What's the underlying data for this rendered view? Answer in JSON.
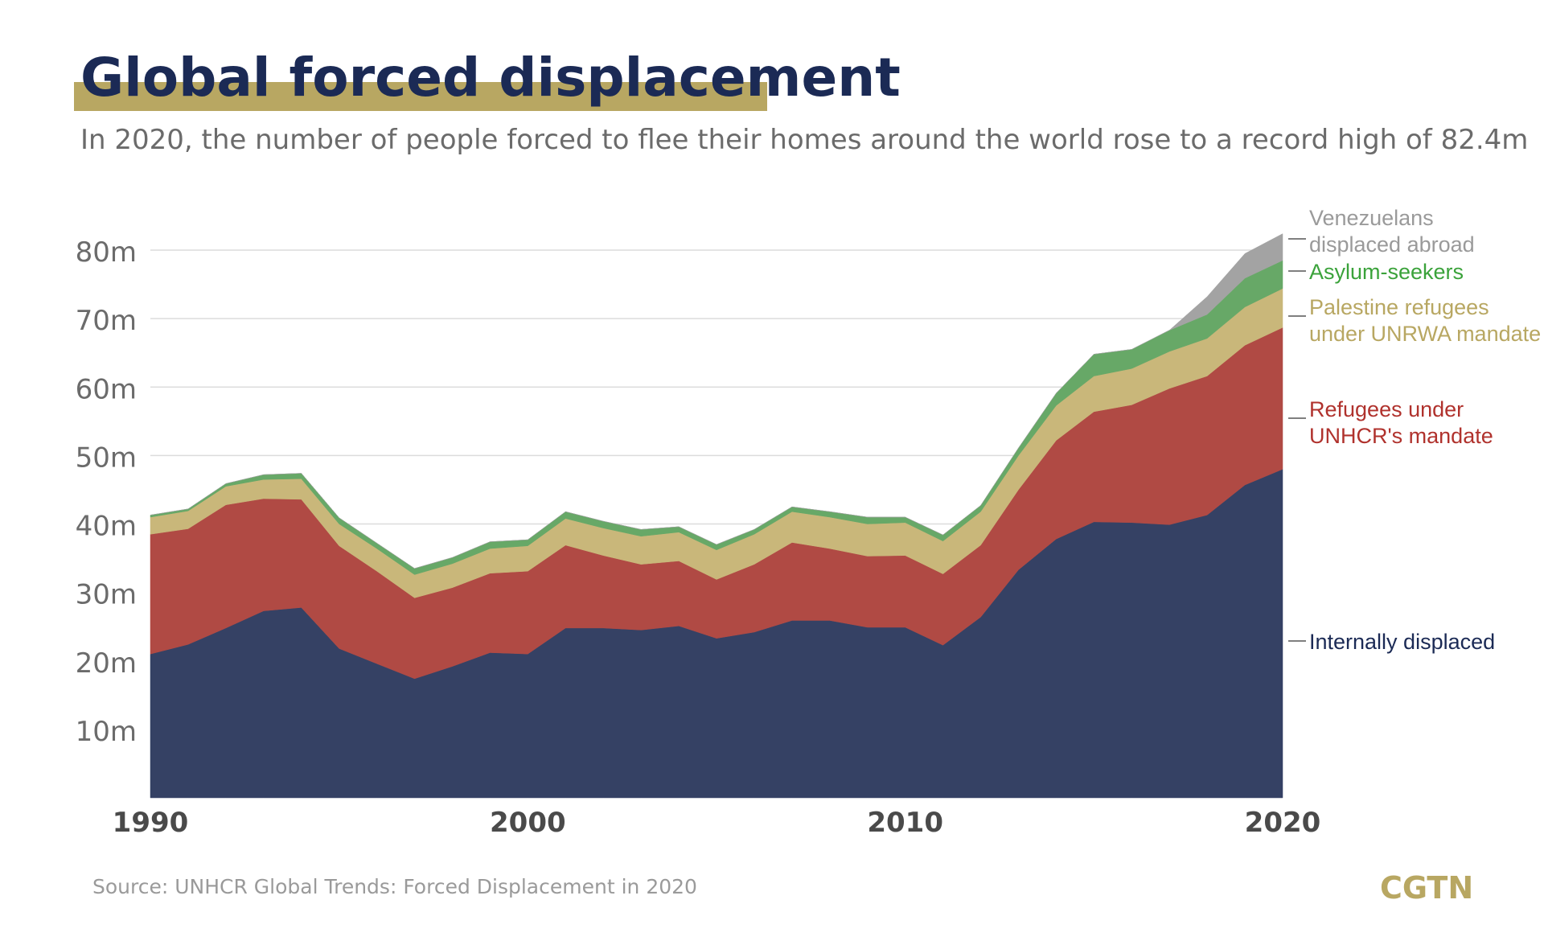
{
  "header": {
    "title": "Global forced displacement",
    "subtitle": "In 2020, the number of people forced to flee their homes around the world rose to a record high of 82.4m"
  },
  "footer": {
    "source": "Source: UNHCR Global Trends: Forced Displacement in 2020",
    "logo": "CGTN"
  },
  "chart_data": {
    "type": "area",
    "stacked": true,
    "title": "",
    "xlabel": "",
    "ylabel": "",
    "xlim": [
      1990,
      2020
    ],
    "ylim": [
      0,
      80
    ],
    "x_ticks": [
      {
        "value": 1990,
        "label": "1990"
      },
      {
        "value": 2000,
        "label": "2000"
      },
      {
        "value": 2010,
        "label": "2010"
      },
      {
        "value": 2020,
        "label": "2020"
      }
    ],
    "y_ticks": [
      {
        "value": 10,
        "label": "10m"
      },
      {
        "value": 20,
        "label": "20m"
      },
      {
        "value": 30,
        "label": "30m"
      },
      {
        "value": 40,
        "label": "40m"
      },
      {
        "value": 50,
        "label": "50m"
      },
      {
        "value": 60,
        "label": "60m"
      },
      {
        "value": 70,
        "label": "70m"
      },
      {
        "value": 80,
        "label": "80m"
      }
    ],
    "grid": true,
    "legend_placement": "right, inline labels",
    "x": [
      1990,
      1991,
      1992,
      1993,
      1994,
      1995,
      1996,
      1997,
      1998,
      1999,
      2000,
      2001,
      2002,
      2003,
      2004,
      2005,
      2006,
      2007,
      2008,
      2009,
      2010,
      2011,
      2012,
      2013,
      2014,
      2015,
      2016,
      2017,
      2018,
      2019,
      2020
    ],
    "series": [
      {
        "name": "Internally displaced",
        "color": "#354164",
        "label_color": "#1b2a55",
        "label_lines": [
          "Internally displaced"
        ],
        "values": [
          21.0,
          22.4,
          24.8,
          27.3,
          27.8,
          21.8,
          19.6,
          17.4,
          19.2,
          21.2,
          21.0,
          24.8,
          24.8,
          24.5,
          25.1,
          23.3,
          24.2,
          25.9,
          25.9,
          24.9,
          24.9,
          22.3,
          26.4,
          33.3,
          37.8,
          40.3,
          40.2,
          39.9,
          41.3,
          45.7,
          48.0
        ]
      },
      {
        "name": "Refugees under UNHCR's mandate",
        "color": "#b04a44",
        "label_color": "#b0322d",
        "label_lines": [
          "Refugees under",
          "UNHCR's mandate"
        ],
        "values": [
          17.5,
          16.9,
          18.0,
          16.4,
          15.8,
          15.0,
          13.5,
          11.8,
          11.5,
          11.6,
          12.1,
          12.1,
          10.6,
          9.6,
          9.5,
          8.6,
          9.9,
          11.4,
          10.5,
          10.4,
          10.5,
          10.4,
          10.5,
          11.7,
          14.4,
          16.1,
          17.2,
          19.9,
          20.3,
          20.4,
          20.7
        ]
      },
      {
        "name": "Palestine refugees under UNRWA mandate",
        "color": "#c9b77a",
        "label_color": "#b8a762",
        "label_lines": [
          "Palestine refugees",
          "under UNRWA mandate"
        ],
        "values": [
          2.5,
          2.6,
          2.7,
          2.8,
          3.0,
          3.2,
          3.3,
          3.4,
          3.5,
          3.6,
          3.7,
          3.9,
          4.0,
          4.1,
          4.2,
          4.3,
          4.4,
          4.5,
          4.6,
          4.7,
          4.8,
          4.8,
          4.9,
          5.0,
          5.1,
          5.2,
          5.3,
          5.4,
          5.5,
          5.6,
          5.7
        ]
      },
      {
        "name": "Asylum-seekers",
        "color": "#67a867",
        "label_color": "#3aa23a",
        "label_lines": [
          "Asylum-seekers"
        ],
        "values": [
          0.3,
          0.3,
          0.4,
          0.7,
          0.8,
          0.9,
          0.8,
          0.9,
          0.9,
          1.0,
          0.9,
          1.0,
          1.0,
          1.0,
          0.8,
          0.8,
          0.7,
          0.7,
          0.8,
          1.0,
          0.8,
          0.9,
          0.9,
          1.1,
          1.8,
          3.2,
          2.8,
          3.1,
          3.5,
          4.2,
          4.1
        ]
      },
      {
        "name": "Venezuelans displaced abroad",
        "color": "#a3a3a3",
        "label_color": "#9a9a9a",
        "label_lines": [
          "Venezuelans",
          "displaced abroad"
        ],
        "values": [
          0,
          0,
          0,
          0,
          0,
          0,
          0,
          0,
          0,
          0,
          0,
          0,
          0,
          0,
          0,
          0,
          0,
          0,
          0,
          0,
          0,
          0,
          0,
          0,
          0,
          0,
          0,
          0,
          2.6,
          3.6,
          3.9
        ]
      }
    ]
  }
}
